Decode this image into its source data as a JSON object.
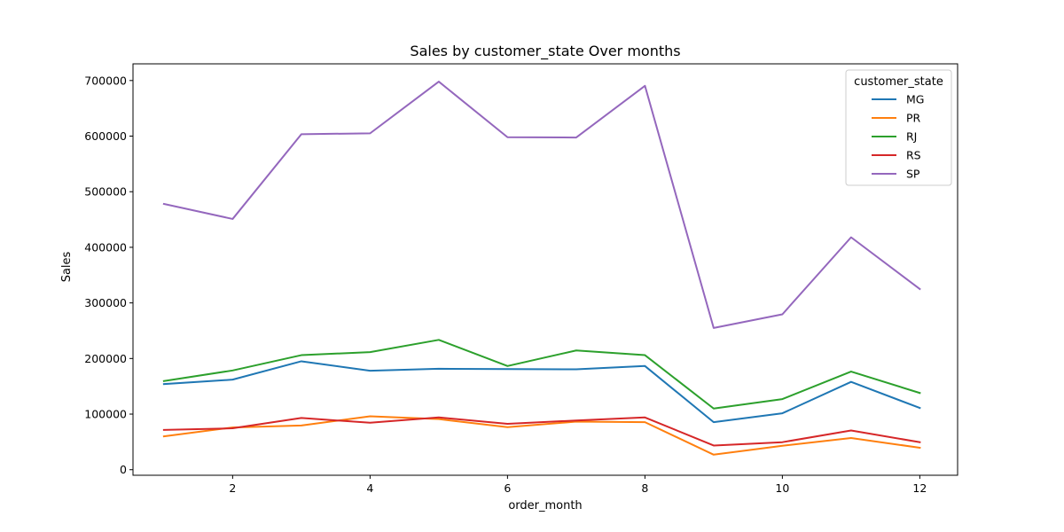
{
  "chart_data": {
    "type": "line",
    "title": "Sales by customer_state Over months",
    "xlabel": "order_month",
    "ylabel": "Sales",
    "x": [
      1,
      2,
      3,
      4,
      5,
      6,
      7,
      8,
      9,
      10,
      11,
      12
    ],
    "xlim": [
      0.55,
      12.55
    ],
    "ylim": [
      -10000,
      730000
    ],
    "xticks": [
      2,
      4,
      6,
      8,
      10,
      12
    ],
    "yticks": [
      0,
      100000,
      200000,
      300000,
      400000,
      500000,
      600000,
      700000
    ],
    "grid": false,
    "legend": {
      "title": "customer_state",
      "placement": "top-right"
    },
    "series": [
      {
        "name": "MG",
        "color": "#1f77b4",
        "values": [
          154000,
          162000,
          195000,
          178000,
          181500,
          181000,
          180500,
          186500,
          85500,
          101500,
          158000,
          111000
        ]
      },
      {
        "name": "PR",
        "color": "#ff7f0e",
        "values": [
          60000,
          76000,
          79500,
          96000,
          91000,
          76500,
          86500,
          85500,
          27000,
          43000,
          57000,
          39500
        ]
      },
      {
        "name": "RJ",
        "color": "#2ca02c",
        "values": [
          159500,
          178500,
          206000,
          211500,
          233500,
          186500,
          214500,
          206000,
          110000,
          127000,
          176500,
          138000
        ]
      },
      {
        "name": "RS",
        "color": "#d62728",
        "values": [
          71500,
          74500,
          93000,
          84500,
          94000,
          82500,
          88500,
          94000,
          43500,
          49500,
          70500,
          49500
        ]
      },
      {
        "name": "SP",
        "color": "#9467bd",
        "values": [
          478000,
          451000,
          603500,
          605000,
          698000,
          598000,
          597500,
          690500,
          255000,
          279500,
          418000,
          325000
        ]
      }
    ]
  }
}
